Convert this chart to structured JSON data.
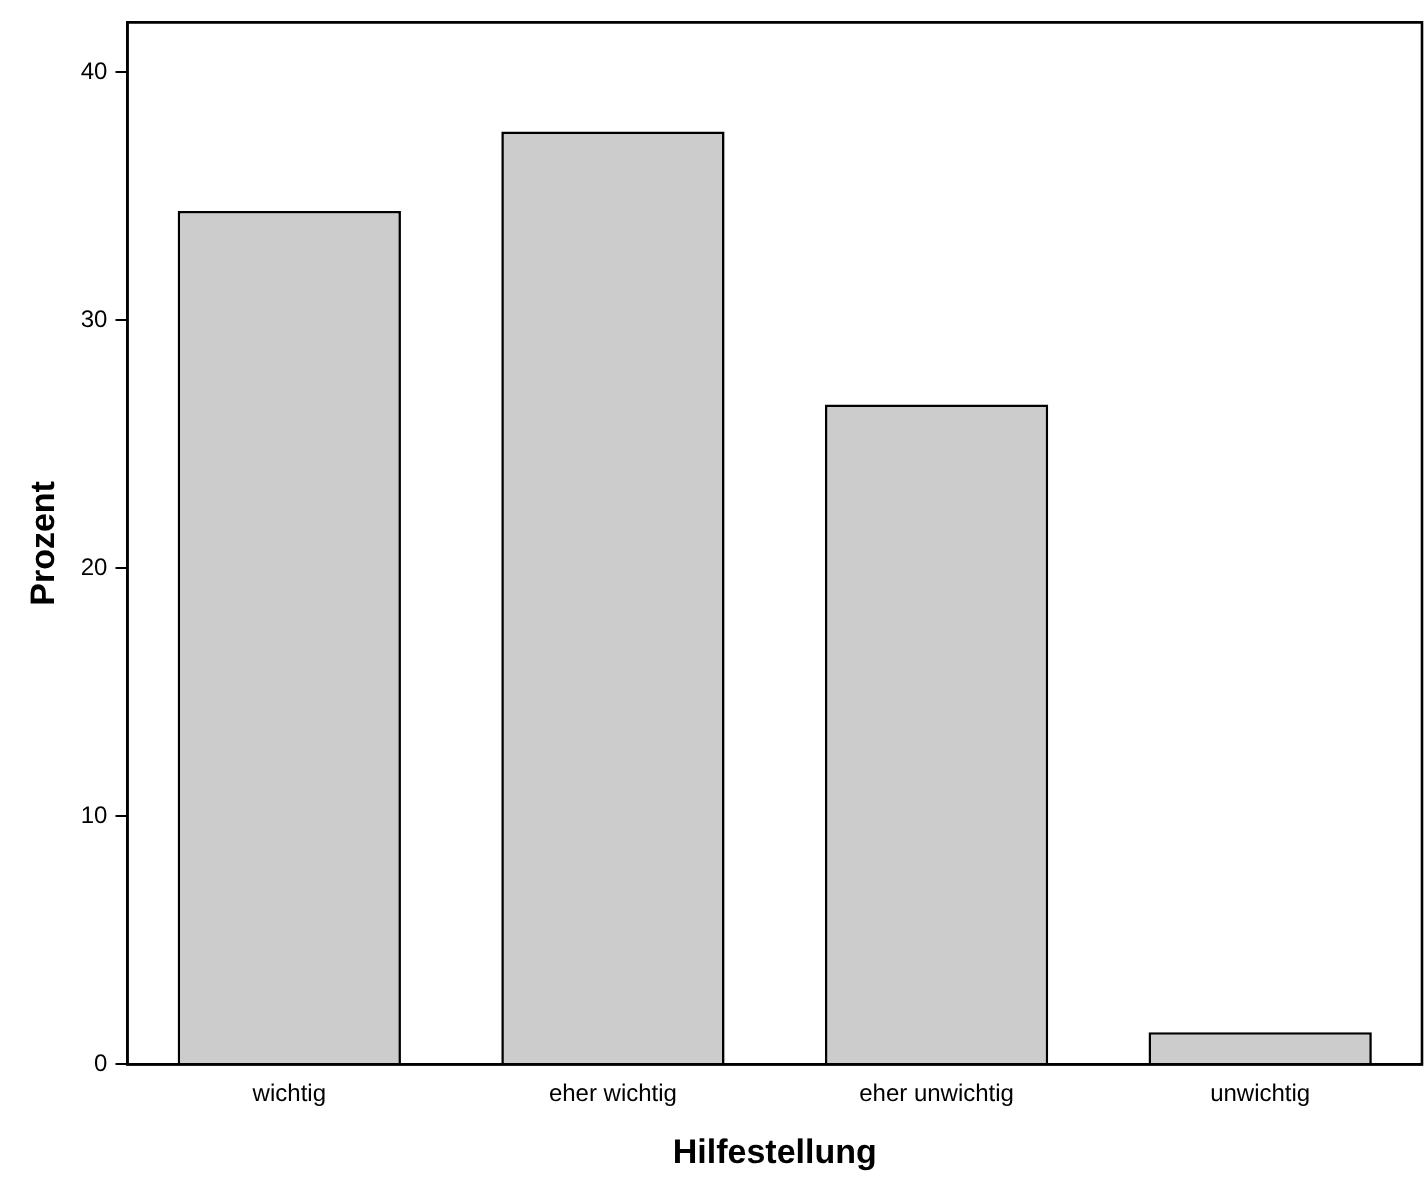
{
  "chart_data": {
    "type": "bar",
    "xlabel": "Hilfestellung",
    "ylabel": "Prozent",
    "categories": [
      "wichtig",
      "eher wichtig",
      "eher unwichtig",
      "unwichtig"
    ],
    "values": [
      34.4,
      37.6,
      26.6,
      1.3
    ],
    "color": "#cccccc",
    "ylim": [
      0,
      42
    ],
    "yticks": [
      0,
      10,
      20,
      30,
      40
    ],
    "grid": false,
    "legend": false
  }
}
